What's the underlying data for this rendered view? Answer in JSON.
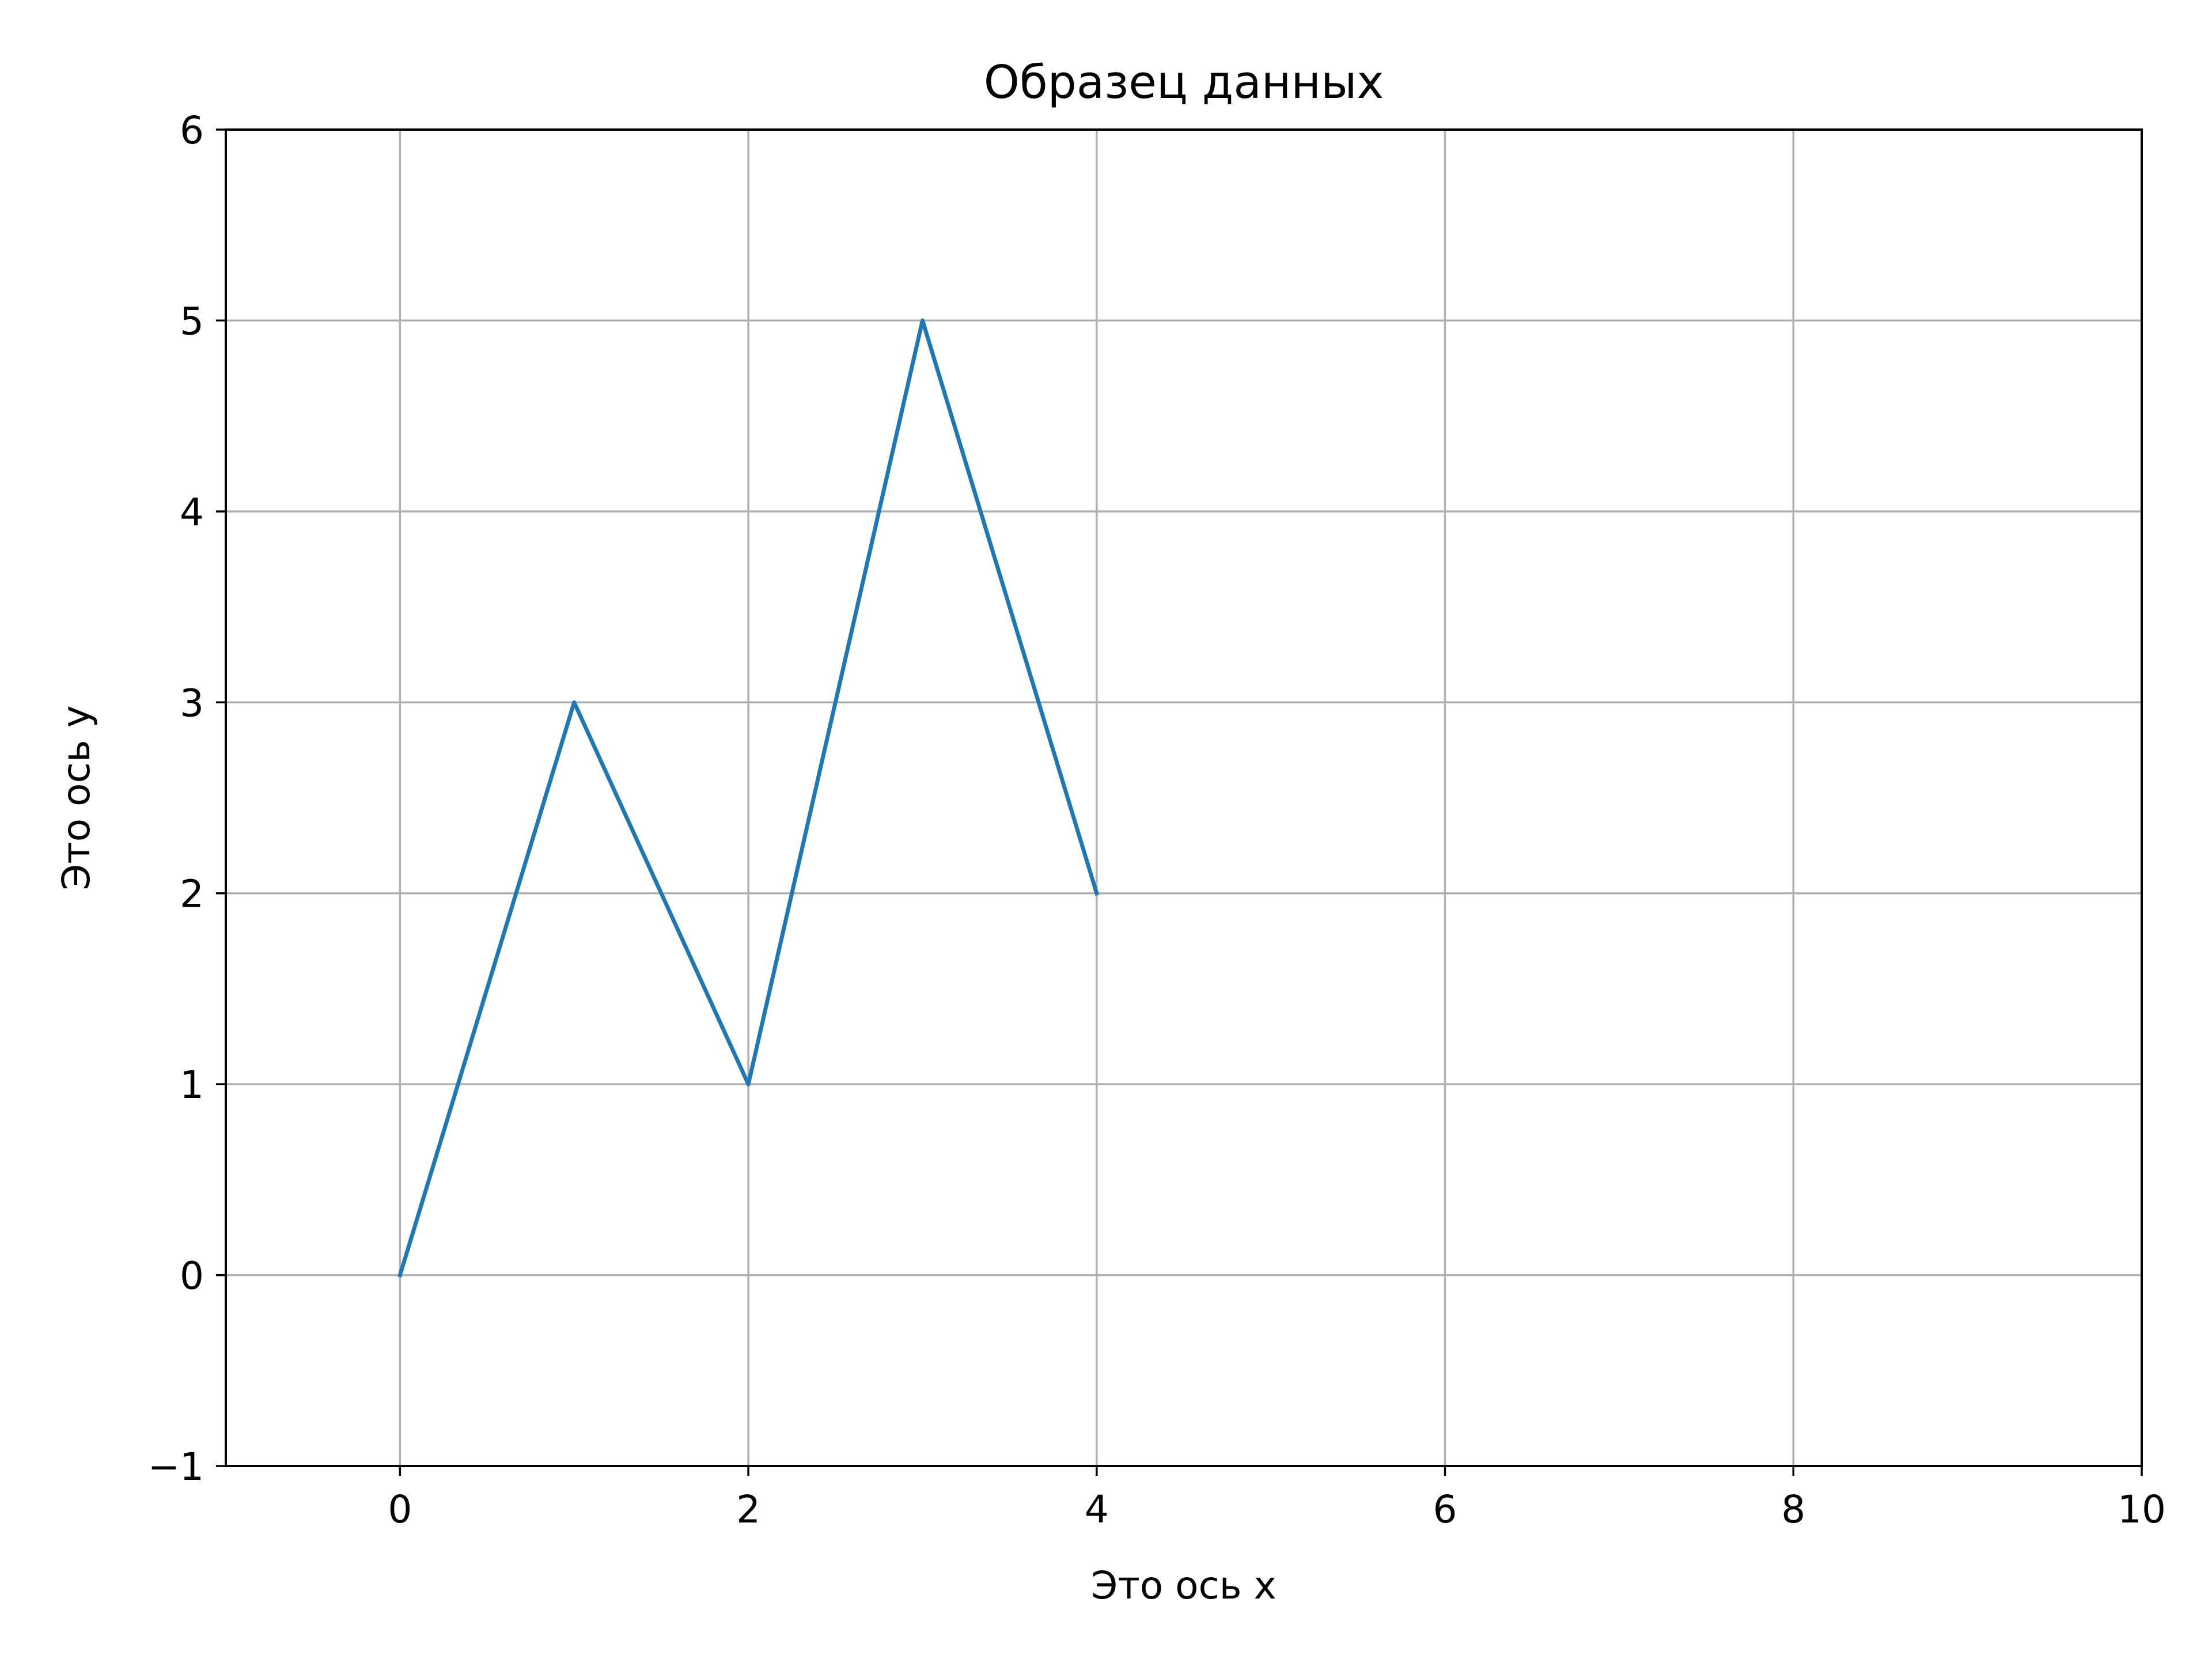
{
  "chart_data": {
    "type": "line",
    "title": "Образец данных",
    "xlabel": "Это ось x",
    "ylabel": "Это ось y",
    "xlim": [
      -1,
      10
    ],
    "ylim": [
      -1,
      6
    ],
    "xticks": [
      0,
      2,
      4,
      6,
      8,
      10
    ],
    "yticks": [
      -1,
      0,
      1,
      2,
      3,
      4,
      5,
      6
    ],
    "xtick_labels": [
      "0",
      "2",
      "4",
      "6",
      "8",
      "10"
    ],
    "ytick_labels": [
      "−1",
      "0",
      "1",
      "2",
      "3",
      "4",
      "5",
      "6"
    ],
    "grid": true,
    "legend": false,
    "series": [
      {
        "x": [
          0,
          1,
          2,
          3,
          4
        ],
        "y": [
          0,
          3,
          1,
          5,
          2
        ],
        "color": "#1f77b4"
      }
    ]
  },
  "colors": {
    "line": "#1f77b4",
    "grid": "#b0b0b0",
    "axes": "#000000",
    "background": "#ffffff"
  }
}
